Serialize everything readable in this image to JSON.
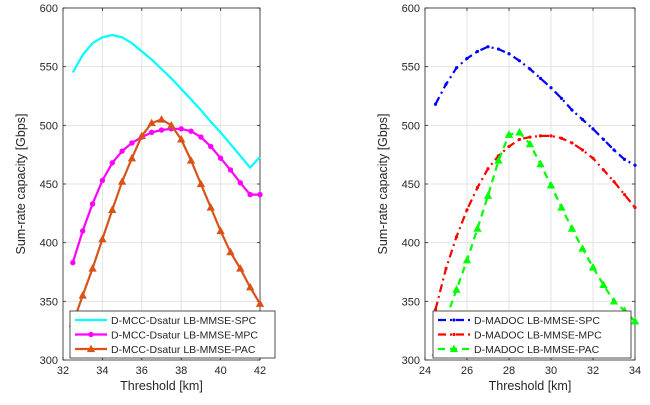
{
  "chart_data": [
    {
      "type": "line",
      "xlabel": "Threshold [km]",
      "ylabel": "Sum-rate capacity [Gbps]",
      "xlim": [
        32,
        42
      ],
      "ylim": [
        300,
        600
      ],
      "xticks": [
        "32",
        "34",
        "36",
        "38",
        "40",
        "42"
      ],
      "yticks": [
        "300",
        "350",
        "400",
        "450",
        "500",
        "550",
        "600"
      ],
      "grid": true,
      "legend_position": "bottom-right",
      "x": [
        32.5,
        33.0,
        33.5,
        34.0,
        34.5,
        35.0,
        35.5,
        36.0,
        36.5,
        37.0,
        37.5,
        38.0,
        38.5,
        39.0,
        39.5,
        40.0,
        40.5,
        41.0,
        41.5,
        42.0
      ],
      "series": [
        {
          "name": "D-MCC-Dsatur LB-MMSE-SPC",
          "color": "#00ffff",
          "line": "solid",
          "marker": "none",
          "values": [
            545,
            560,
            570,
            575,
            577,
            575,
            570,
            563,
            556,
            548,
            540,
            531,
            522,
            513,
            503,
            494,
            484,
            474,
            464,
            473
          ]
        },
        {
          "name": "D-MCC-Dsatur LB-MMSE-MPC",
          "color": "#ff00ff",
          "line": "solid",
          "marker": "circle",
          "values": [
            383,
            410,
            433,
            453,
            468,
            478,
            485,
            490,
            494,
            496,
            497,
            497,
            495,
            490,
            482,
            472,
            462,
            451,
            441,
            441
          ]
        },
        {
          "name": "D-MCC-Dsatur LB-MMSE-PAC",
          "color": "#d95319",
          "line": "solid",
          "marker": "triangle",
          "values": [
            331,
            355,
            378,
            403,
            428,
            452,
            472,
            491,
            502,
            505,
            500,
            488,
            470,
            450,
            430,
            410,
            392,
            378,
            362,
            348
          ]
        }
      ]
    },
    {
      "type": "line",
      "xlabel": "Threshold [km]",
      "ylabel": "Sum-rate capacity [Gbps]",
      "xlim": [
        24,
        34
      ],
      "ylim": [
        300,
        600
      ],
      "xticks": [
        "24",
        "26",
        "28",
        "30",
        "32",
        "34"
      ],
      "yticks": [
        "300",
        "350",
        "400",
        "450",
        "500",
        "550",
        "600"
      ],
      "grid": true,
      "legend_position": "bottom-right",
      "x": [
        24.5,
        25.0,
        25.5,
        26.0,
        26.5,
        27.0,
        27.5,
        28.0,
        28.5,
        29.0,
        29.5,
        30.0,
        30.5,
        31.0,
        31.5,
        32.0,
        32.5,
        33.0,
        33.5,
        34.0
      ],
      "series": [
        {
          "name": "D-MADOC LB-MMSE-SPC",
          "color": "#0000ff",
          "line": "dashdot",
          "marker": "dot",
          "values": [
            518,
            535,
            549,
            557,
            563,
            567,
            565,
            561,
            555,
            548,
            540,
            532,
            523,
            513,
            505,
            497,
            488,
            479,
            471,
            466
          ]
        },
        {
          "name": "D-MADOC LB-MMSE-MPC",
          "color": "#ff0000",
          "line": "dashdot",
          "marker": "dot",
          "values": [
            343,
            378,
            405,
            428,
            447,
            463,
            474,
            482,
            488,
            490,
            491,
            491,
            489,
            485,
            479,
            472,
            462,
            452,
            441,
            430
          ]
        },
        {
          "name": "D-MADOC LB-MMSE-PAC",
          "color": "#00ff00",
          "line": "dashed",
          "marker": "triangle",
          "values": [
            306,
            335,
            360,
            385,
            412,
            440,
            470,
            492,
            494,
            484,
            467,
            449,
            430,
            412,
            395,
            379,
            364,
            350,
            342,
            333
          ]
        }
      ]
    }
  ]
}
